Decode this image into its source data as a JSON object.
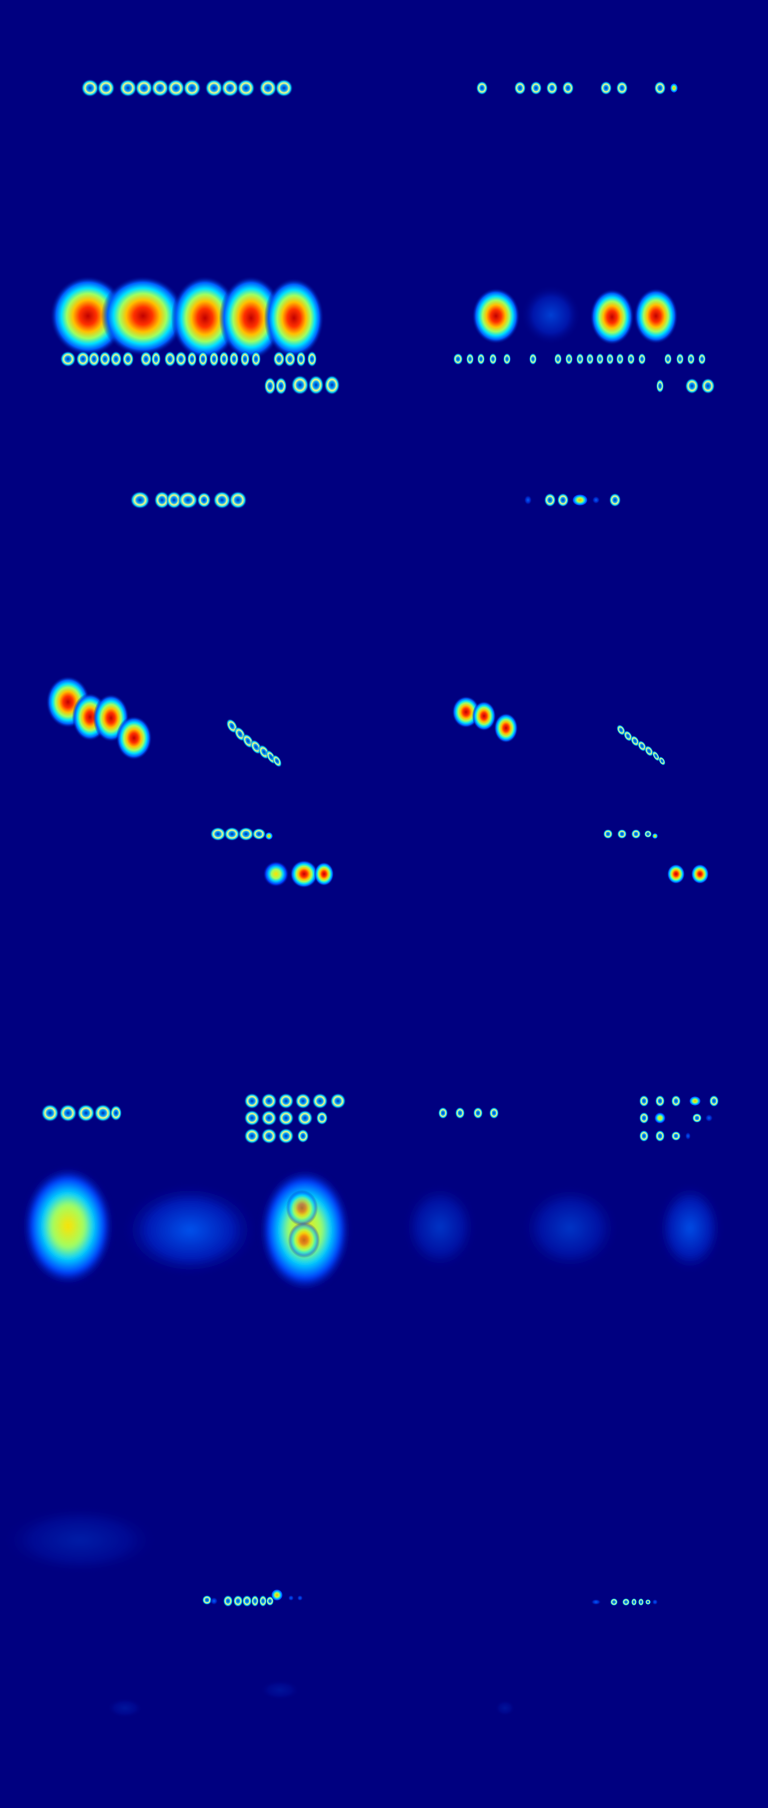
{
  "image": {
    "colormap": "jet",
    "background_color": "#000080",
    "content": "heatmap"
  }
}
